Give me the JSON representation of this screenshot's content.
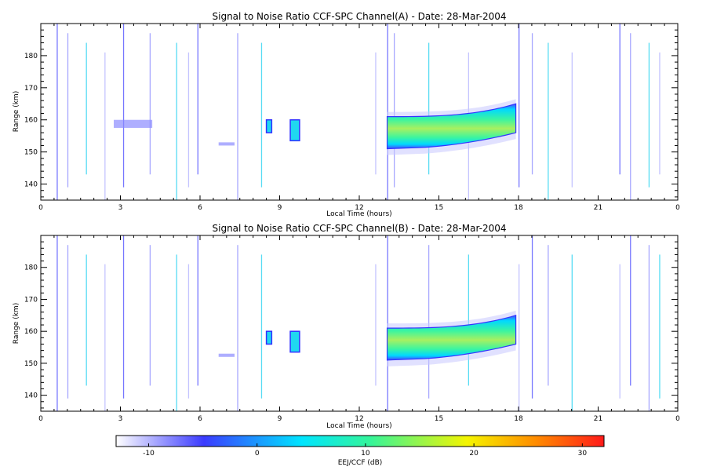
{
  "chart_data": [
    {
      "type": "heatmap",
      "title": "Signal to Noise Ratio CCF-SPC Channel(A) - Date: 28-Mar-2004",
      "xlabel": "Local Time (hours)",
      "ylabel": "Range (km)",
      "xlim": [
        0,
        24
      ],
      "ylim": [
        135,
        190
      ],
      "xticks": [
        "0",
        "3",
        "6",
        "9",
        "12",
        "15",
        "18",
        "21",
        "0"
      ],
      "yticks": [
        "140",
        "150",
        "160",
        "170",
        "180"
      ],
      "echo_regions": [
        {
          "t_start": 2.75,
          "t_end": 4.2,
          "range_low": 157.5,
          "range_high": 160.0,
          "level": "edge"
        },
        {
          "t_start": 6.7,
          "t_end": 7.3,
          "range_low": 152.0,
          "range_high": 153.0,
          "level": "edge"
        },
        {
          "t_start": 8.5,
          "t_end": 8.7,
          "range_low": 156.0,
          "range_high": 160.0,
          "level": "strong"
        },
        {
          "t_start": 9.4,
          "t_end": 9.75,
          "range_low": 153.5,
          "range_high": 160.0,
          "level": "strong"
        },
        {
          "t_start": 13.05,
          "t_end": 17.9,
          "range_low_start": 151.0,
          "range_low_end": 156.0,
          "range_high_start": 161.0,
          "range_high_end": 165.0,
          "peak_snr_db": 10,
          "level": "strong"
        }
      ],
      "vertical_streaks_hours": [
        0.6,
        1.0,
        1.7,
        2.4,
        3.1,
        4.1,
        5.1,
        5.55,
        5.9,
        7.4,
        8.3,
        12.6,
        13.05,
        13.3,
        14.6,
        16.1,
        18.0,
        18.5,
        19.1,
        20.0,
        21.8,
        22.2,
        22.9,
        23.3
      ]
    },
    {
      "type": "heatmap",
      "title": "Signal to Noise Ratio CCF-SPC Channel(B) - Date: 28-Mar-2004",
      "xlabel": "Local Time (hours)",
      "ylabel": "Range (km)",
      "xlim": [
        0,
        24
      ],
      "ylim": [
        135,
        190
      ],
      "xticks": [
        "0",
        "3",
        "6",
        "9",
        "12",
        "15",
        "18",
        "21",
        "0"
      ],
      "yticks": [
        "140",
        "150",
        "160",
        "170",
        "180"
      ],
      "echo_regions": [
        {
          "t_start": 6.7,
          "t_end": 7.3,
          "range_low": 152.0,
          "range_high": 153.0,
          "level": "edge"
        },
        {
          "t_start": 8.5,
          "t_end": 8.7,
          "range_low": 156.0,
          "range_high": 160.0,
          "level": "strong"
        },
        {
          "t_start": 9.4,
          "t_end": 9.75,
          "range_low": 153.5,
          "range_high": 160.0,
          "level": "strong"
        },
        {
          "t_start": 13.05,
          "t_end": 17.9,
          "range_low_start": 151.0,
          "range_low_end": 156.0,
          "range_high_start": 161.0,
          "range_high_end": 165.0,
          "peak_snr_db": 10,
          "level": "strong"
        }
      ],
      "vertical_streaks_hours": [
        0.6,
        1.0,
        1.7,
        2.4,
        3.1,
        4.1,
        5.1,
        5.55,
        5.9,
        7.4,
        8.3,
        12.6,
        13.05,
        14.6,
        16.1,
        18.0,
        18.5,
        19.1,
        20.0,
        21.8,
        22.2,
        22.9,
        23.3
      ]
    }
  ],
  "colorbar": {
    "label": "EEJ/CCF (dB)",
    "range": [
      -13,
      32
    ],
    "ticks": [
      "-10",
      "0",
      "10",
      "20",
      "30"
    ],
    "tick_values": [
      -10,
      0,
      10,
      20,
      30
    ],
    "colors": [
      "#ffffff",
      "#3b3bff",
      "#00e5ff",
      "#34f59a",
      "#f5f500",
      "#ff8c00",
      "#ff1a1a"
    ]
  }
}
